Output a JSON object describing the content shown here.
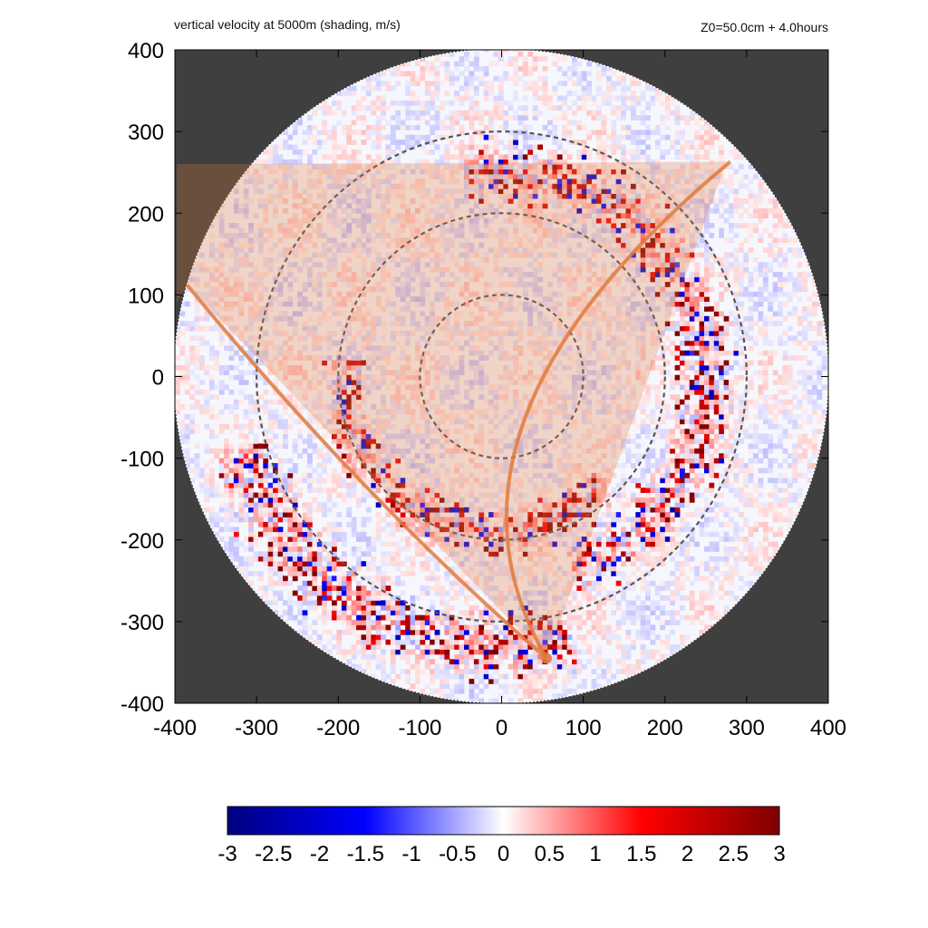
{
  "chart_data": {
    "type": "heatmap",
    "title": "vertical velocity at 5000m (shading, m/s)",
    "subtitle": "Z0=50.0cm  + 4.0hours",
    "x": {
      "lim": [
        -400,
        400
      ],
      "ticks": [
        -400,
        -300,
        -200,
        -100,
        0,
        100,
        200,
        300,
        400
      ],
      "tick_labels": [
        "-400",
        "-300",
        "-200",
        "-100",
        "0",
        "100",
        "200",
        "300",
        "400"
      ]
    },
    "y": {
      "lim": [
        -400,
        400
      ],
      "ticks": [
        400,
        300,
        200,
        100,
        0,
        -100,
        -200,
        -300,
        -400
      ],
      "tick_labels": [
        "400",
        "300",
        "200",
        "100",
        "0",
        "-100",
        "-200",
        "-300",
        "-400"
      ]
    },
    "domain_radius": 400,
    "range_rings": [
      100,
      200,
      300
    ],
    "colorbar": {
      "min": -3,
      "max": 3,
      "ticks": [
        -3,
        -2.5,
        -2,
        -1.5,
        -1,
        -0.5,
        0,
        0.5,
        1,
        1.5,
        2,
        2.5,
        3
      ],
      "tick_labels": [
        "-3",
        "-2.5",
        "-2",
        "-1.5",
        "-1",
        "-0.5",
        "0",
        "0.5",
        "1",
        "1.5",
        "2",
        "2.5",
        "3"
      ],
      "colors": [
        "#00007f",
        "#0000ff",
        "#ffffff",
        "#ff0000",
        "#7f0000"
      ]
    },
    "sector": {
      "apex": [
        55,
        -345
      ],
      "edge_points": [
        [
          280,
          263
        ],
        [
          -385,
          112
        ]
      ],
      "color": "#e07a3c"
    },
    "rainbands": [
      {
        "name": "inner",
        "center": [
          -10,
          -10
        ],
        "radius": 180,
        "from_deg": 170,
        "to_deg": 320,
        "width": 35
      },
      {
        "name": "middle",
        "center": [
          0,
          0
        ],
        "radius": 250,
        "from_deg": -70,
        "to_deg": 100,
        "width": 45
      },
      {
        "name": "outer",
        "center": [
          0,
          0
        ],
        "radius": 330,
        "from_deg": 195,
        "to_deg": 285,
        "width": 50
      }
    ],
    "outside_color": "#3f3f3f"
  }
}
